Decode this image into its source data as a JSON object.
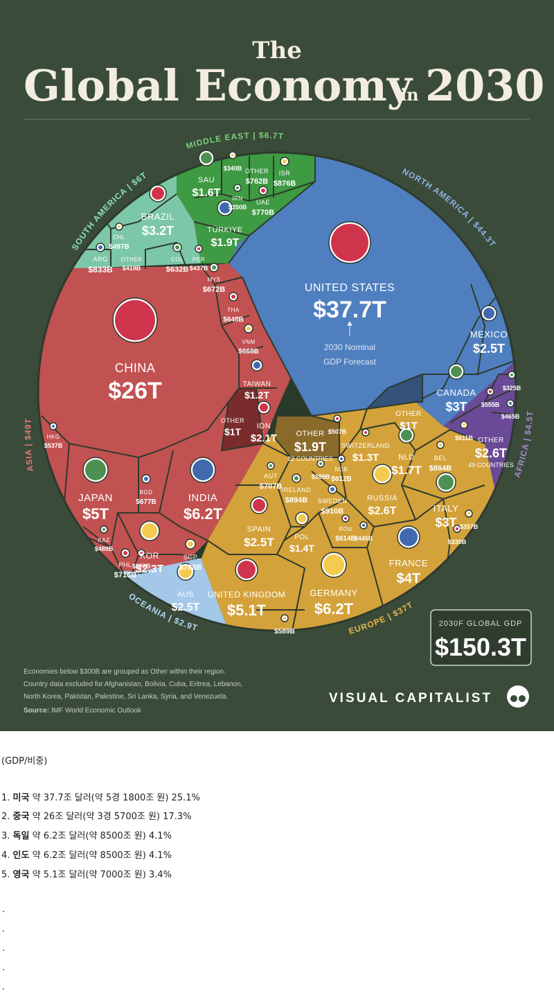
{
  "header": {
    "title_the": "The",
    "title_main": "Global Economy",
    "title_in": "in",
    "title_year": "2030"
  },
  "chart_data": {
    "type": "voronoi-treemap",
    "total_label": "2030F GLOBAL GDP",
    "total_value": "$150.3T",
    "arrow_note_line1": "2030 Nominal",
    "arrow_note_line2": "GDP Forecast",
    "regions": [
      {
        "name": "NORTH AMERICA",
        "value": "$44.3T",
        "color": "#4f7fbf"
      },
      {
        "name": "ASIA",
        "value": "$49T",
        "color": "#c25151"
      },
      {
        "name": "EUROPE",
        "value": "$37T",
        "color": "#d4a23a"
      },
      {
        "name": "MIDDLE EAST",
        "value": "$6.7T",
        "color": "#3f9a44"
      },
      {
        "name": "SOUTH AMERICA",
        "value": "$6T",
        "color": "#7cc7a8"
      },
      {
        "name": "AFRICA",
        "value": "$4.5T",
        "color": "#6a4a96"
      },
      {
        "name": "OCEANIA",
        "value": "$2.9T",
        "color": "#a3c8e8"
      }
    ],
    "countries": [
      {
        "name": "UNITED STATES",
        "value": "$37.7T",
        "region": "NORTH AMERICA"
      },
      {
        "name": "MEXICO",
        "value": "$2.5T",
        "region": "NORTH AMERICA"
      },
      {
        "name": "CANADA",
        "value": "$3T",
        "region": "NORTH AMERICA"
      },
      {
        "name": "OTHER",
        "value": "$1T",
        "region": "NORTH AMERICA"
      },
      {
        "name": "CHINA",
        "value": "$26T",
        "region": "ASIA"
      },
      {
        "name": "INDIA",
        "value": "$6.2T",
        "region": "ASIA"
      },
      {
        "name": "JAPAN",
        "value": "$5T",
        "region": "ASIA"
      },
      {
        "name": "KOR",
        "value": "$2.3T",
        "region": "ASIA"
      },
      {
        "name": "IDN",
        "value": "$2.1T",
        "region": "ASIA"
      },
      {
        "name": "TAIWAN",
        "value": "$1.2T",
        "region": "ASIA"
      },
      {
        "name": "OTHER",
        "value": "$1T",
        "region": "ASIA"
      },
      {
        "name": "SGP",
        "value": "$788B",
        "region": "ASIA"
      },
      {
        "name": "PHL",
        "value": "$716B",
        "region": "ASIA"
      },
      {
        "name": "BGD",
        "value": "$677B",
        "region": "ASIA"
      },
      {
        "name": "MYS",
        "value": "$672B",
        "region": "ASIA"
      },
      {
        "name": "VNM",
        "value": "$668B",
        "region": "ASIA"
      },
      {
        "name": "THA",
        "value": "$648B",
        "region": "ASIA"
      },
      {
        "name": "HKG",
        "value": "$537B",
        "region": "ASIA"
      },
      {
        "name": "KAZ",
        "value": "$489B",
        "region": "ASIA"
      },
      {
        "name": "GERMANY",
        "value": "$6.2T",
        "region": "EUROPE"
      },
      {
        "name": "UNITED KINGDOM",
        "value": "$5.1T",
        "region": "EUROPE"
      },
      {
        "name": "FRANCE",
        "value": "$4T",
        "region": "EUROPE"
      },
      {
        "name": "ITALY",
        "value": "$3T",
        "region": "EUROPE"
      },
      {
        "name": "RUSSIA",
        "value": "$2.6T",
        "region": "EUROPE"
      },
      {
        "name": "SPAIN",
        "value": "$2.5T",
        "region": "EUROPE"
      },
      {
        "name": "OTHER",
        "value": "$1.9T",
        "note": "22 COUNTRIES",
        "region": "EUROPE"
      },
      {
        "name": "NLD",
        "value": "$1.7T",
        "region": "EUROPE"
      },
      {
        "name": "POL",
        "value": "$1.4T",
        "region": "EUROPE"
      },
      {
        "name": "SWITZERLAND",
        "value": "$1.3T",
        "region": "EUROPE"
      },
      {
        "name": "SWEDEN",
        "value": "$910B",
        "region": "EUROPE"
      },
      {
        "name": "IRELAND",
        "value": "$894B",
        "region": "EUROPE"
      },
      {
        "name": "BEL",
        "value": "$864B",
        "region": "EUROPE"
      },
      {
        "name": "ROU",
        "value": "$614B",
        "region": "EUROPE"
      },
      {
        "name": "NOR",
        "value": "$612B",
        "region": "EUROPE"
      },
      {
        "name": "AUT",
        "value": "$707B",
        "region": "EUROPE"
      },
      {
        "name": "",
        "value": "$589B",
        "region": "EUROPE"
      },
      {
        "name": "",
        "value": "$507B",
        "region": "EUROPE"
      },
      {
        "name": "",
        "value": "$445B",
        "region": "EUROPE"
      },
      {
        "name": "",
        "value": "$389B",
        "region": "EUROPE"
      },
      {
        "name": "",
        "value": "$357B",
        "region": "EUROPE"
      },
      {
        "name": "",
        "value": "$330B",
        "region": "EUROPE"
      },
      {
        "name": "TÜRKIYE",
        "value": "$1.9T",
        "region": "MIDDLE EAST"
      },
      {
        "name": "SAU",
        "value": "$1.6T",
        "region": "MIDDLE EAST"
      },
      {
        "name": "ISR",
        "value": "$876B",
        "region": "MIDDLE EAST"
      },
      {
        "name": "UAE",
        "value": "$770B",
        "region": "MIDDLE EAST"
      },
      {
        "name": "OTHER",
        "value": "$762B",
        "region": "MIDDLE EAST"
      },
      {
        "name": "IRN",
        "value": "$350B",
        "region": "MIDDLE EAST"
      },
      {
        "name": "",
        "value": "$340B",
        "region": "MIDDLE EAST"
      },
      {
        "name": "BRAZIL",
        "value": "$3.2T",
        "region": "SOUTH AMERICA"
      },
      {
        "name": "ARG",
        "value": "$833B",
        "region": "SOUTH AMERICA"
      },
      {
        "name": "COL",
        "value": "$632B",
        "region": "SOUTH AMERICA"
      },
      {
        "name": "CHL",
        "value": "$497B",
        "region": "SOUTH AMERICA"
      },
      {
        "name": "PER",
        "value": "$437B",
        "region": "SOUTH AMERICA"
      },
      {
        "name": "OTHER",
        "value": "$419B",
        "region": "SOUTH AMERICA"
      },
      {
        "name": "OTHER",
        "value": "$2.6T",
        "note": "49 COUNTRIES",
        "region": "AFRICA"
      },
      {
        "name": "",
        "value": "$611B",
        "region": "AFRICA"
      },
      {
        "name": "",
        "value": "$555B",
        "region": "AFRICA"
      },
      {
        "name": "",
        "value": "$465B",
        "region": "AFRICA"
      },
      {
        "name": "",
        "value": "$325B",
        "region": "AFRICA"
      },
      {
        "name": "AUS",
        "value": "$2.5T",
        "region": "OCEANIA"
      },
      {
        "name": "",
        "value": "$327B",
        "region": "OCEANIA"
      }
    ]
  },
  "footer": {
    "note_line1": "Economies below $300B are grouped as Other within their region.",
    "note_line2": "Country data excluded for Afghanistan, Bolivia, Cuba, Eritrea, Lebanon,",
    "note_line3": "North Korea, Pakistan, Palestine, Sri Lanka, Syria, and Venezuela.",
    "source_label": "Source:",
    "source_text": "IMF World Economic Outlook",
    "brand": "VISUAL CAPITALIST"
  },
  "post": {
    "header": "(GDP/비중)",
    "ranks": [
      {
        "num": "1.",
        "country": "미국",
        "text": "약 37.7조 달러(약 5경 1800조 원) 25.1%"
      },
      {
        "num": "2.",
        "country": "중국",
        "text": "약 26조 달러(약 3경 5700조 원) 17.3%"
      },
      {
        "num": "3.",
        "country": "독일",
        "text": "약 6.2조 달러(약 8500조 원) 4.1%"
      },
      {
        "num": "4.",
        "country": "인도",
        "text": "약 6.2조 달러(약 8500조 원) 4.1%"
      },
      {
        "num": "5.",
        "country": "영국",
        "text": "약 5.1조 달러(약 7000조 원) 3.4%"
      }
    ],
    "dots": [
      ".",
      ".",
      ".",
      ".",
      "."
    ]
  }
}
